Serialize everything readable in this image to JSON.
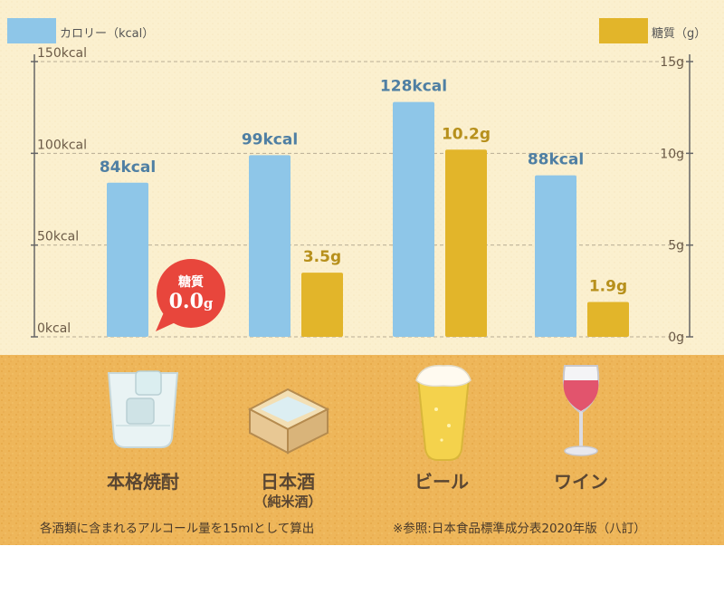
{
  "legend": {
    "calories_label": "カロリー（kcal）",
    "sugar_label": "糖質（g）",
    "calories_color": "#8ec6e8",
    "sugar_color": "#e2b52a"
  },
  "badge": {
    "title": "糖質",
    "value": "0.0",
    "unit": "g",
    "color": "#e8463c"
  },
  "drinks": [
    {
      "name": "本格焼酎",
      "sub": "",
      "icon": "shochu-glass-icon"
    },
    {
      "name": "日本酒",
      "sub": "（純米酒）",
      "icon": "sake-masu-icon"
    },
    {
      "name": "ビール",
      "sub": "",
      "icon": "beer-glass-icon"
    },
    {
      "name": "ワイン",
      "sub": "",
      "icon": "wine-glass-icon"
    }
  ],
  "footnotes": {
    "left": "各酒類に含まれるアルコール量を15mlとして算出",
    "right": "※参照:日本食品標準成分表2020年版（八訂）"
  },
  "chart_data": {
    "type": "bar",
    "categories": [
      "本格焼酎",
      "日本酒",
      "ビール",
      "ワイン"
    ],
    "series": [
      {
        "name": "カロリー（kcal）",
        "axis": "left",
        "values": [
          84,
          99,
          128,
          88
        ],
        "labels": [
          "84kcal",
          "99kcal",
          "128kcal",
          "88kcal"
        ],
        "color": "#8ec6e8"
      },
      {
        "name": "糖質（g）",
        "axis": "right",
        "values": [
          0,
          3.5,
          10.2,
          1.9
        ],
        "labels": [
          "",
          "3.5g",
          "10.2g",
          "1.9g"
        ],
        "color": "#e2b52a"
      }
    ],
    "y_left": {
      "ylim": [
        0,
        150
      ],
      "ticks": [
        0,
        50,
        100,
        150
      ],
      "tick_labels": [
        "0kcal",
        "50kcal",
        "100kcal",
        "150kcal"
      ]
    },
    "y_right": {
      "ylim": [
        0,
        15
      ],
      "ticks": [
        0,
        5,
        10,
        15
      ],
      "tick_labels": [
        "0g",
        "5g",
        "10g",
        "15g"
      ]
    },
    "grid": true,
    "legend_placement": "top"
  }
}
